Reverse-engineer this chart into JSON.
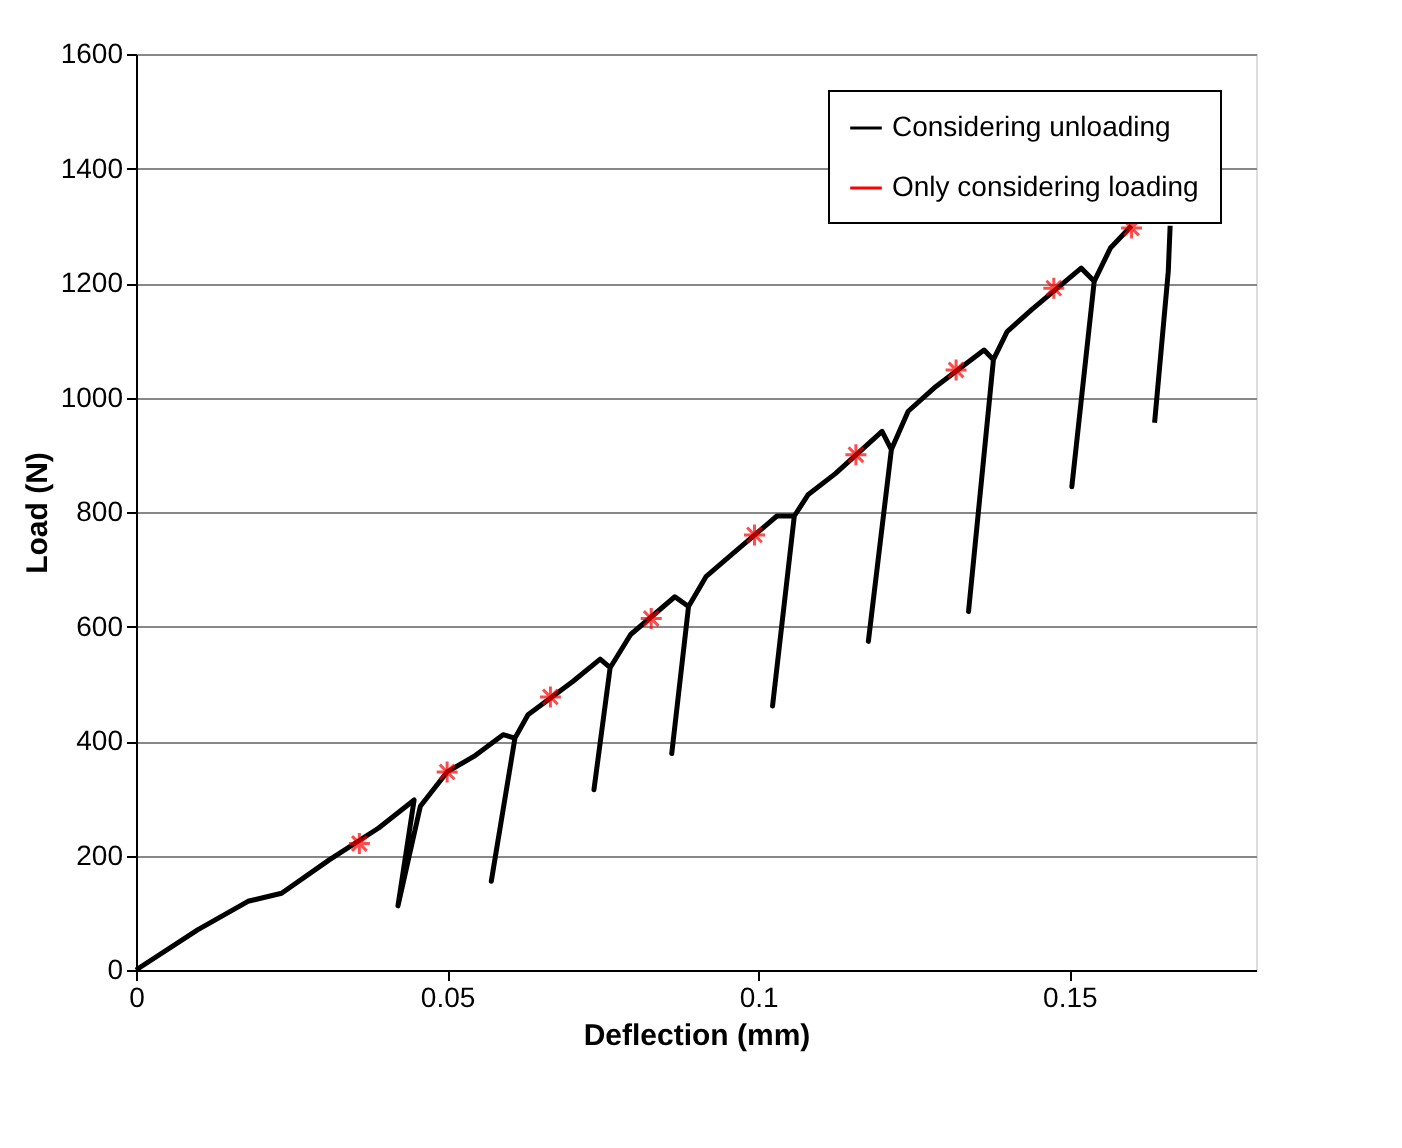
{
  "chart_data": {
    "type": "line",
    "xlabel": "Deflection (mm)",
    "ylabel": "Load (N)",
    "xlim": [
      0,
      0.18
    ],
    "xticks": [
      0,
      0.05,
      0.1,
      0.15
    ],
    "ylim": [
      0,
      1600
    ],
    "yticks": [
      0,
      200,
      400,
      600,
      800,
      1000,
      1200,
      1400,
      1600
    ],
    "grid": "y",
    "legend": "top right",
    "series": [
      {
        "name": "Considering unloading",
        "color": "#000000",
        "marker": "none",
        "line_style": "solid",
        "x": [
          0,
          0.0099,
          0.018,
          0.0234,
          0.031,
          0.039,
          0.0447,
          0.0421,
          0.0457,
          0.05,
          0.0543,
          0.059,
          0.0609,
          0.0571,
          0.0609,
          0.063,
          0.0702,
          0.0746,
          0.0762,
          0.0736,
          0.0762,
          0.0795,
          0.0866,
          0.0888,
          0.0861,
          0.0888,
          0.0916,
          0.096,
          0.103,
          0.1058,
          0.1023,
          0.1058,
          0.108,
          0.1124,
          0.1199,
          0.1214,
          0.1177,
          0.1214,
          0.1241,
          0.1283,
          0.1363,
          0.1378,
          0.1338,
          0.1378,
          0.14,
          0.144,
          0.1519,
          0.154,
          0.1504,
          0.154,
          0.1566,
          0.16,
          null,
          0.1662,
          0.1659,
          0.1637
        ],
        "values": [
          0,
          70,
          120,
          134,
          192,
          248,
          297,
          112,
          286,
          346,
          373,
          411,
          405,
          155,
          405,
          446,
          504,
          543,
          528,
          315,
          528,
          586,
          652,
          635,
          378,
          635,
          687,
          728,
          793,
          793,
          461,
          793,
          830,
          867,
          941,
          909,
          574,
          909,
          976,
          1017,
          1083,
          1066,
          626,
          1066,
          1115,
          1154,
          1226,
          1203,
          844,
          1203,
          1261,
          1300,
          null,
          1300,
          1220,
          956
        ]
      },
      {
        "name": "Only considering loading",
        "color": "#ff0000",
        "type": "scatter",
        "marker": "cross",
        "x": [
          0.0359,
          0.05,
          0.0666,
          0.0828,
          0.0994,
          0.1157,
          0.1318,
          0.1475,
          0.16
        ],
        "values": [
          221,
          346,
          477,
          614,
          760,
          900,
          1048,
          1191,
          1296
        ]
      }
    ]
  }
}
